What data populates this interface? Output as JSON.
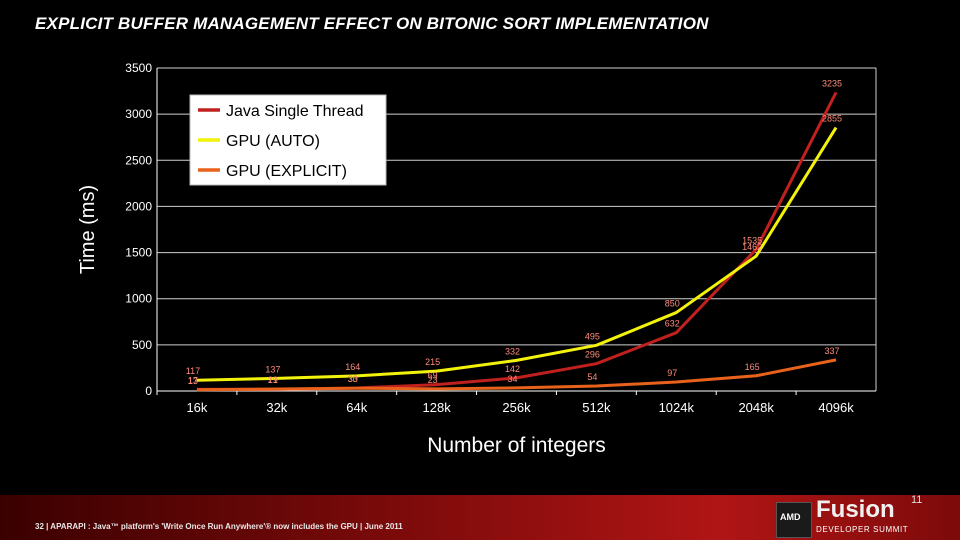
{
  "slide": {
    "title": "EXPLICIT BUFFER MANAGEMENT EFFECT ON BITONIC SORT IMPLEMENTATION",
    "footer": "32 | APARAPI : Java™ platform's 'Write Once Run Anywhere'® now includes the GPU | June 2011",
    "logo": {
      "brand": "AMD",
      "name": "Fusion",
      "edition": "11",
      "subtitle": "DEVELOPER SUMMIT"
    }
  },
  "colors": {
    "java": "#c0201e",
    "gpu_auto": "#f2f20a",
    "gpu_explicit": "#e8621c",
    "plot_bg": "#000000",
    "grid": "#d0d0d0"
  },
  "chart_data": {
    "type": "line",
    "xlabel": "Number of integers",
    "ylabel": "Time (ms)",
    "ylim": [
      0,
      3500
    ],
    "yticks": [
      0,
      500,
      1000,
      1500,
      2000,
      2500,
      3000,
      3500
    ],
    "categories": [
      "16k",
      "32k",
      "64k",
      "128k",
      "256k",
      "512k",
      "1024k",
      "2048k",
      "4096k"
    ],
    "legend_position": "top-left",
    "grid": true,
    "series": [
      {
        "name": "Java Single Thread",
        "color": "#c0201e",
        "values": [
          17,
          19,
          33,
          69,
          142,
          296,
          632,
          1535,
          3235
        ]
      },
      {
        "name": "GPU (AUTO)",
        "color": "#f2f20a",
        "values": [
          117,
          137,
          164,
          215,
          332,
          495,
          850,
          1462,
          2855
        ]
      },
      {
        "name": "GPU (EXPLICIT)",
        "color": "#e8621c",
        "values": [
          13,
          21,
          30,
          23,
          34,
          54,
          97,
          165,
          337
        ]
      }
    ]
  }
}
